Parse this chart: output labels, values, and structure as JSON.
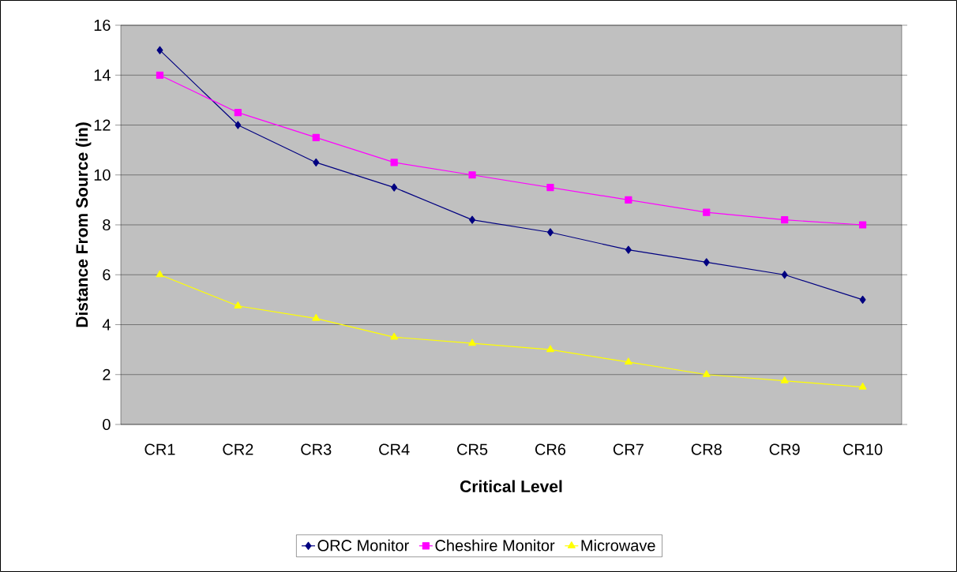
{
  "chart_data": {
    "type": "line",
    "xlabel": "Critical Level",
    "ylabel": "Distance From Source (in)",
    "categories": [
      "CR1",
      "CR2",
      "CR3",
      "CR4",
      "CR5",
      "CR6",
      "CR7",
      "CR8",
      "CR9",
      "CR10"
    ],
    "series": [
      {
        "name": "ORC Monitor",
        "color": "#000080",
        "marker": "diamond",
        "values": [
          15,
          12,
          10.5,
          9.5,
          8.2,
          7.7,
          7,
          6.5,
          6,
          5
        ]
      },
      {
        "name": "Cheshire Monitor",
        "color": "#ff00ff",
        "marker": "square",
        "values": [
          14,
          12.5,
          11.5,
          10.5,
          10,
          9.5,
          9,
          8.5,
          8.2,
          8
        ]
      },
      {
        "name": "Microwave",
        "color": "#ffff00",
        "marker": "triangle",
        "values": [
          6,
          4.75,
          4.25,
          3.5,
          3.25,
          3,
          2.5,
          2,
          1.75,
          1.5
        ]
      }
    ],
    "ylim": [
      0,
      16
    ],
    "yticks": [
      0,
      2,
      4,
      6,
      8,
      10,
      12,
      14,
      16
    ],
    "grid": "y",
    "legend": "bottom"
  }
}
